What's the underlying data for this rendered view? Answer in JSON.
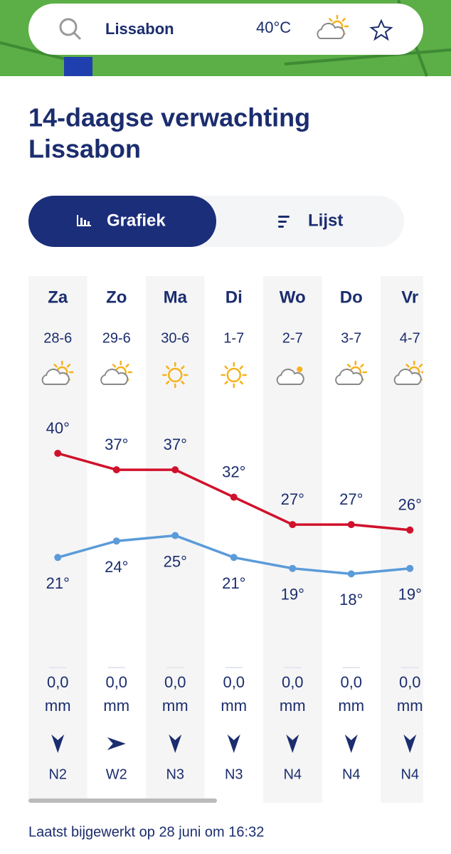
{
  "header": {
    "city": "Lissabon",
    "temperature": "40°C"
  },
  "title": {
    "line1": "14-daagse verwachting",
    "line2": "Lissabon"
  },
  "tabs": {
    "active": "Grafiek",
    "other": "Lijst"
  },
  "forecast": {
    "days": [
      {
        "day": "Za",
        "date": "28-6",
        "icon": "partly-cloudy",
        "precip": "0,0",
        "unit": "mm",
        "wind": "N2"
      },
      {
        "day": "Zo",
        "date": "29-6",
        "icon": "partly-cloudy",
        "precip": "0,0",
        "unit": "mm",
        "wind": "W2"
      },
      {
        "day": "Ma",
        "date": "30-6",
        "icon": "sunny",
        "precip": "0,0",
        "unit": "mm",
        "wind": "N3"
      },
      {
        "day": "Di",
        "date": "1-7",
        "icon": "sunny",
        "precip": "0,0",
        "unit": "mm",
        "wind": "N3"
      },
      {
        "day": "Wo",
        "date": "2-7",
        "icon": "cloudy",
        "precip": "0,0",
        "unit": "mm",
        "wind": "N4"
      },
      {
        "day": "Do",
        "date": "3-7",
        "icon": "partly-cloudy",
        "precip": "0,0",
        "unit": "mm",
        "wind": "N4"
      },
      {
        "day": "Vr",
        "date": "4-7",
        "icon": "partly-cloudy",
        "precip": "0,0",
        "unit": "mm",
        "wind": "N4"
      }
    ],
    "max": {
      "color": "#d0112b",
      "values": [
        40,
        37,
        37,
        32,
        27,
        27,
        26
      ],
      "value_labels": [
        "40°",
        "37°",
        "37°",
        "32°",
        "27°",
        "27°",
        "26°"
      ]
    },
    "min": {
      "color": "#5b9bd9",
      "values": [
        21,
        24,
        25,
        21,
        19,
        18,
        19
      ],
      "value_labels": [
        "21°",
        "24°",
        "25°",
        "21°",
        "19°",
        "18°",
        "19°"
      ]
    }
  },
  "footer": {
    "updated": "Laatst bijgewerkt op 28 juni om 16:32"
  }
}
